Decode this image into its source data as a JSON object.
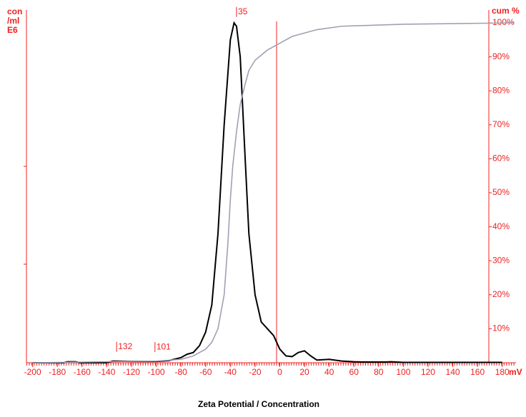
{
  "chart_data": {
    "type": "line",
    "title": "Zeta Potential / Concentration",
    "x_label": "mV",
    "y_label": [
      "con",
      "/ml",
      "E6"
    ],
    "y2_label": "cum %",
    "xlim": [
      -205,
      190
    ],
    "xticks": [
      -200,
      -180,
      -160,
      -140,
      -120,
      -100,
      -80,
      -60,
      -40,
      -20,
      0,
      20,
      40,
      60,
      80,
      100,
      120,
      140,
      160,
      180
    ],
    "ylim": [
      0,
      1
    ],
    "y2lim": [
      0,
      100
    ],
    "y2ticks": [
      {
        "value": 10,
        "label": "10%"
      },
      {
        "value": 20,
        "label": "20%"
      },
      {
        "value": 30,
        "label": "30%"
      },
      {
        "value": 40,
        "label": "40%"
      },
      {
        "value": 50,
        "label": "50%"
      },
      {
        "value": 60,
        "label": "60%"
      },
      {
        "value": 70,
        "label": "70%"
      },
      {
        "value": 80,
        "label": "80%"
      },
      {
        "value": 90,
        "label": "90%"
      },
      {
        "value": 100,
        "label": "100%"
      }
    ],
    "axis_color": "#f02020",
    "series": [
      {
        "color": "#000000",
        "axis": "y",
        "x": [
          -200,
          -175,
          -172,
          -165,
          -162,
          -140,
          -135,
          -120,
          -100,
          -90,
          -80,
          -75,
          -70,
          -65,
          -60,
          -55,
          -50,
          -45,
          -40,
          -37,
          -35,
          -32,
          -28,
          -25,
          -20,
          -15,
          -10,
          -5,
          0,
          5,
          10,
          15,
          20,
          25,
          30,
          40,
          50,
          60,
          70,
          85,
          90,
          100,
          130,
          180
        ],
        "values": [
          0,
          0,
          0.003,
          0.003,
          0,
          0,
          0.005,
          0.004,
          0.004,
          0.006,
          0.015,
          0.025,
          0.03,
          0.05,
          0.09,
          0.17,
          0.38,
          0.7,
          0.95,
          1.0,
          0.99,
          0.9,
          0.6,
          0.38,
          0.2,
          0.12,
          0.1,
          0.08,
          0.04,
          0.02,
          0.018,
          0.03,
          0.035,
          0.02,
          0.008,
          0.01,
          0.005,
          0.003,
          0.002,
          0.002,
          0.003,
          0.001,
          0.001,
          0.001
        ]
      },
      {
        "color": "#a0a0b4",
        "axis": "y2",
        "x": [
          -200,
          -100,
          -80,
          -70,
          -60,
          -55,
          -50,
          -45,
          -42,
          -40,
          -38,
          -35,
          -32,
          -28,
          -25,
          -20,
          -10,
          0,
          10,
          20,
          30,
          50,
          100,
          190
        ],
        "values": [
          0,
          0.5,
          1,
          2,
          4,
          6,
          10,
          20,
          35,
          48,
          58,
          68,
          76,
          82,
          86,
          89,
          92,
          94,
          96,
          97,
          98,
          99,
          99.6,
          100
        ]
      }
    ],
    "annotations": [
      {
        "x": -35,
        "text": "35"
      },
      {
        "x": -132,
        "text": "132"
      },
      {
        "x": -101,
        "text": "101"
      }
    ]
  }
}
